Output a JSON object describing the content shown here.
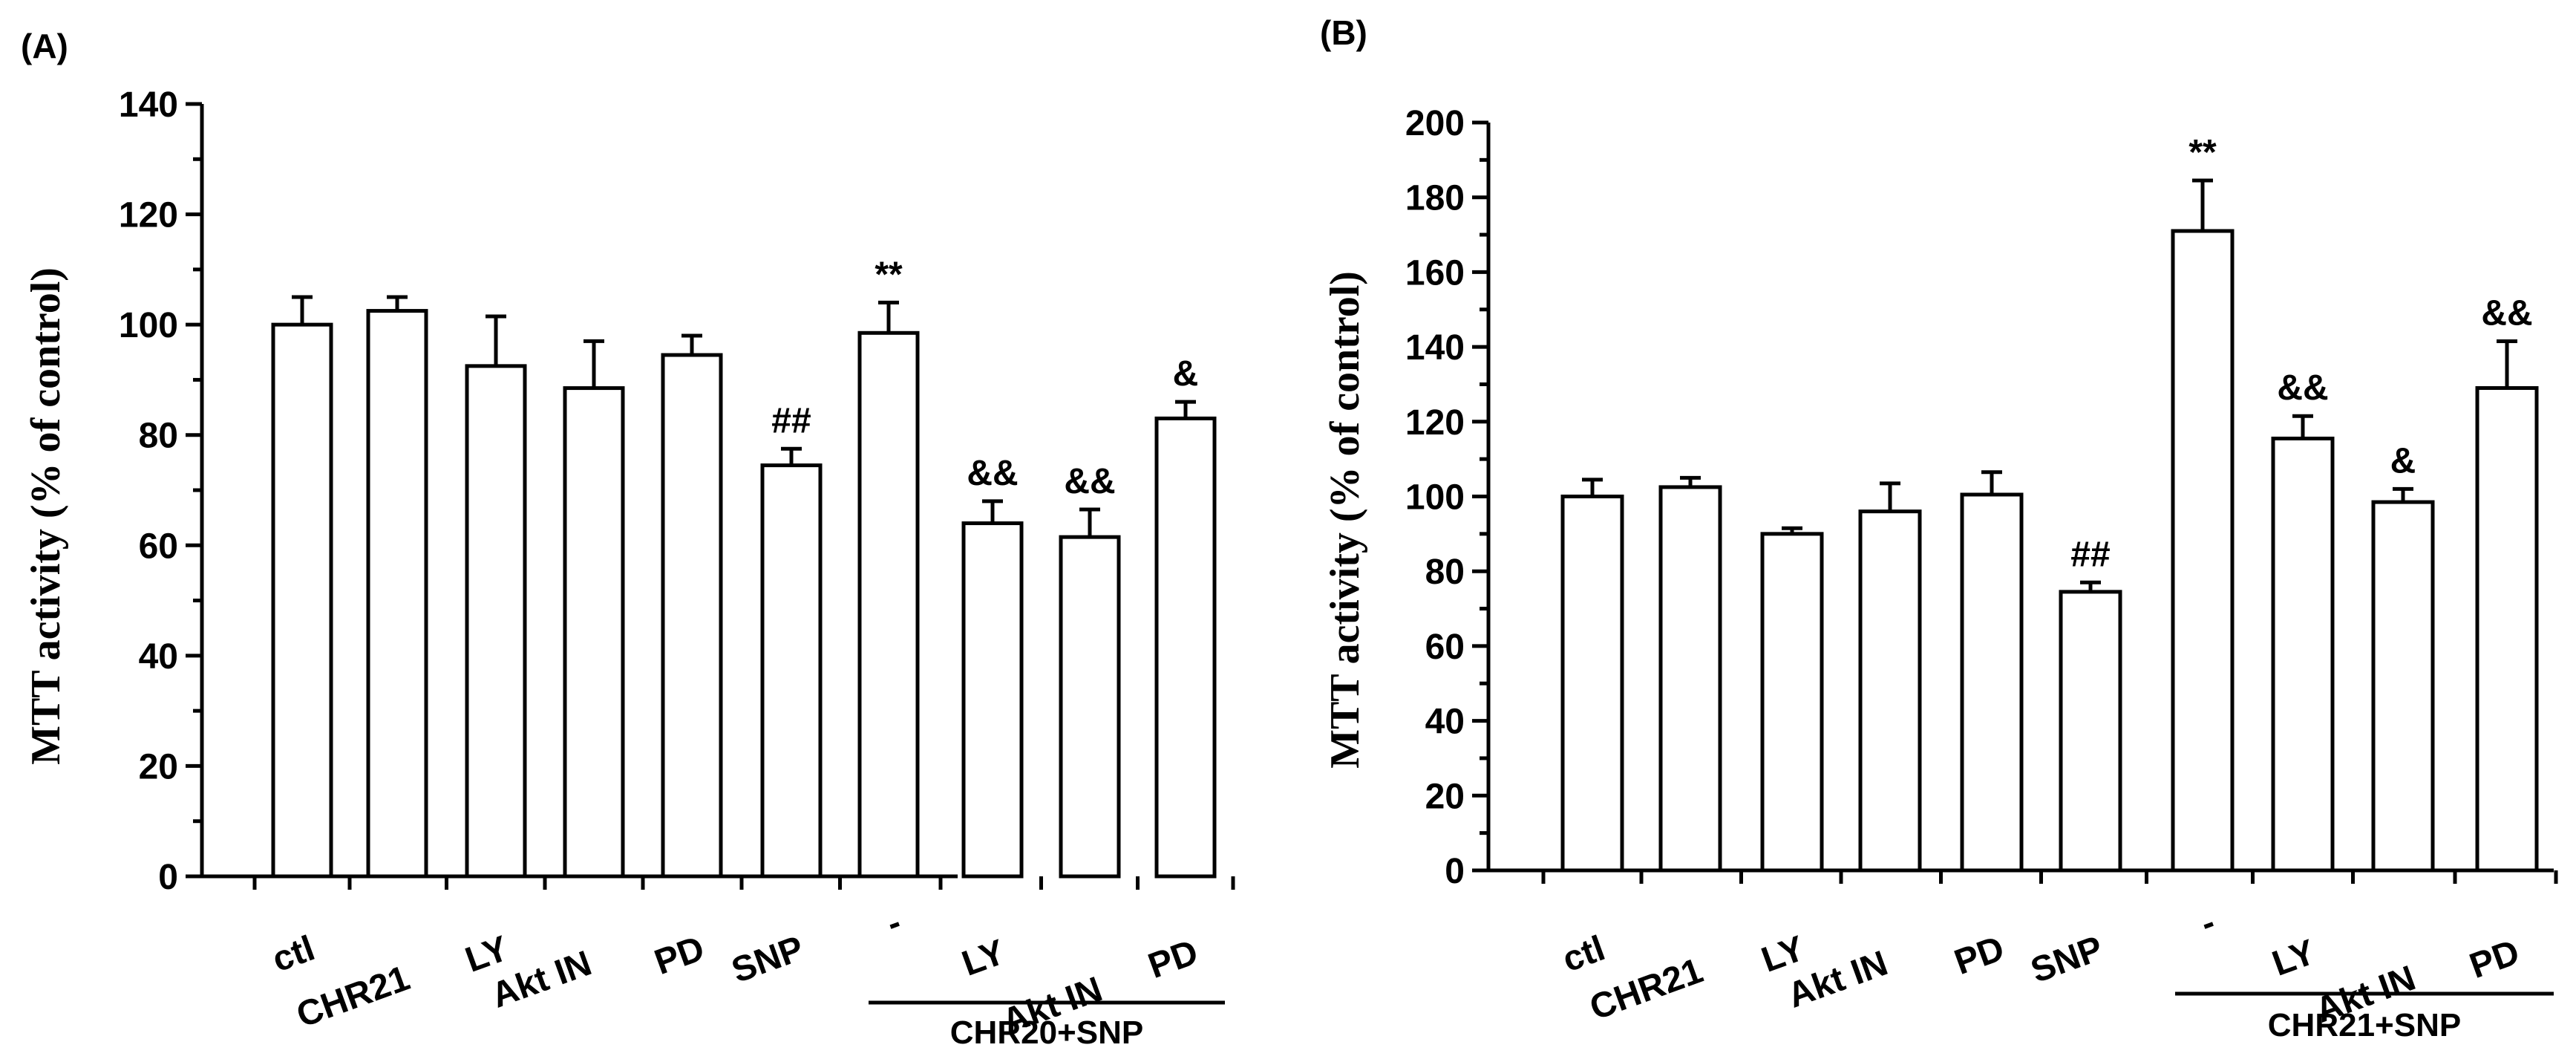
{
  "chart_data": [
    {
      "type": "bar",
      "panel_label": "(A)",
      "ylabel": "MTT activity  (% of control)",
      "ylim": [
        0,
        140
      ],
      "yticks": [
        0,
        20,
        40,
        60,
        80,
        100,
        120,
        140
      ],
      "categories": [
        "ctl",
        "CHR21",
        "LY",
        "Akt IN",
        "PD",
        "SNP",
        "-",
        "LY",
        "Akt IN",
        "PD"
      ],
      "values": [
        100,
        102.5,
        92.5,
        88.5,
        94.5,
        74.5,
        98.5,
        64,
        61.5,
        83
      ],
      "errors": [
        5,
        2.5,
        9,
        8.5,
        3.5,
        3,
        5.5,
        4,
        5,
        3
      ],
      "annotations": [
        "",
        "",
        "",
        "",
        "",
        "##",
        "**",
        "&&",
        "&&",
        "&"
      ],
      "group": {
        "label": "CHR20+SNP",
        "start": 6,
        "end": 9
      }
    },
    {
      "type": "bar",
      "panel_label": "(B)",
      "ylabel": "MTT activity (% of control)",
      "ylim": [
        0,
        200
      ],
      "yticks": [
        0,
        20,
        40,
        60,
        80,
        100,
        120,
        140,
        160,
        180,
        200
      ],
      "categories": [
        "ctl",
        "CHR21",
        "LY",
        "Akt IN",
        "PD",
        "SNP",
        "-",
        "LY",
        "Akt IN",
        "PD"
      ],
      "values": [
        100,
        102.5,
        90,
        96,
        100.5,
        74.5,
        171,
        115.5,
        98.5,
        129
      ],
      "errors": [
        4.5,
        2.5,
        1.5,
        7.5,
        6,
        2.5,
        13.5,
        6,
        3.5,
        12.5
      ],
      "annotations": [
        "",
        "",
        "",
        "",
        "",
        "##",
        "**",
        "&&",
        "&",
        "&&"
      ],
      "group": {
        "label": "CHR21+SNP",
        "start": 6,
        "end": 9
      }
    }
  ]
}
